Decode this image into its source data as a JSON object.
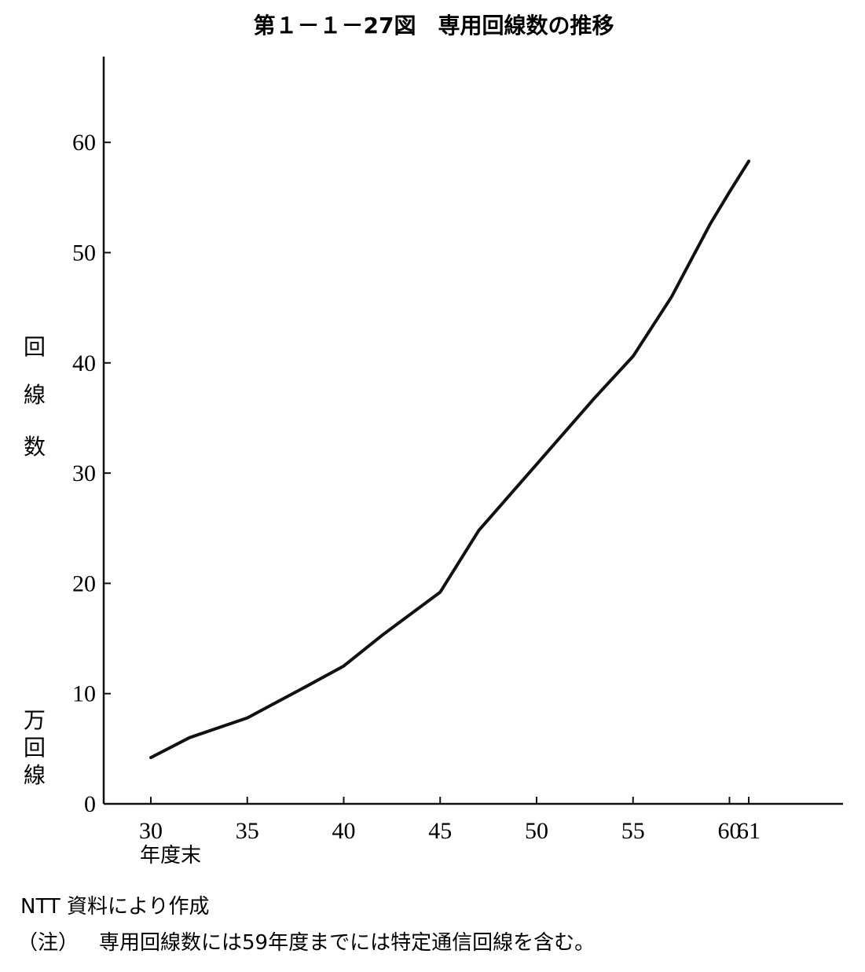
{
  "chart_data": {
    "type": "line",
    "title": "第１－１－27図　専用回線数の推移",
    "ylabel": [
      "回",
      "線",
      "数"
    ],
    "yunit": [
      "万",
      "回",
      "線"
    ],
    "xunit": "年度末",
    "xlabel": "",
    "x": [
      30,
      32,
      35,
      38,
      40,
      42,
      45,
      47,
      50,
      53,
      55,
      57,
      58,
      59,
      60,
      61
    ],
    "series": [
      {
        "values": [
          4.2,
          6.0,
          7.8,
          10.6,
          12.5,
          15.3,
          19.2,
          24.8,
          30.8,
          36.8,
          40.6,
          46.0,
          49.3,
          52.6,
          55.5,
          58.3
        ]
      }
    ],
    "yticks": [
      0,
      10,
      20,
      30,
      40,
      50,
      60
    ],
    "xticks": [
      {
        "value": 30,
        "label": "30"
      },
      {
        "value": 35,
        "label": "35"
      },
      {
        "value": 40,
        "label": "40"
      },
      {
        "value": 45,
        "label": "45"
      },
      {
        "value": 50,
        "label": "50"
      },
      {
        "value": 55,
        "label": "55"
      },
      {
        "value": 60,
        "label": "60"
      },
      {
        "value": 61,
        "label": "61"
      }
    ],
    "xlim": [
      27.5,
      65
    ],
    "ylim": [
      0,
      67
    ],
    "grid": false,
    "legend": "none"
  },
  "notes": {
    "source": "NTT 資料により作成",
    "note_prefix": "（注）",
    "note_text": "専用回線数には59年度までには特定通信回線を含む。"
  }
}
